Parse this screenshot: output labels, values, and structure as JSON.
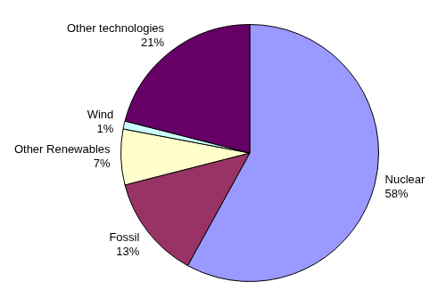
{
  "chart_data": {
    "type": "pie",
    "categories": [
      "Nuclear",
      "Fossil",
      "Other Renewables",
      "Wind",
      "Other technologies"
    ],
    "values": [
      58,
      13,
      7,
      1,
      21
    ],
    "value_labels": [
      "58%",
      "13%",
      "7%",
      "1%",
      "21%"
    ],
    "colors": [
      "#9999ff",
      "#993366",
      "#ffffcc",
      "#ccffff",
      "#660066"
    ],
    "legend": false,
    "data_labels": true
  }
}
